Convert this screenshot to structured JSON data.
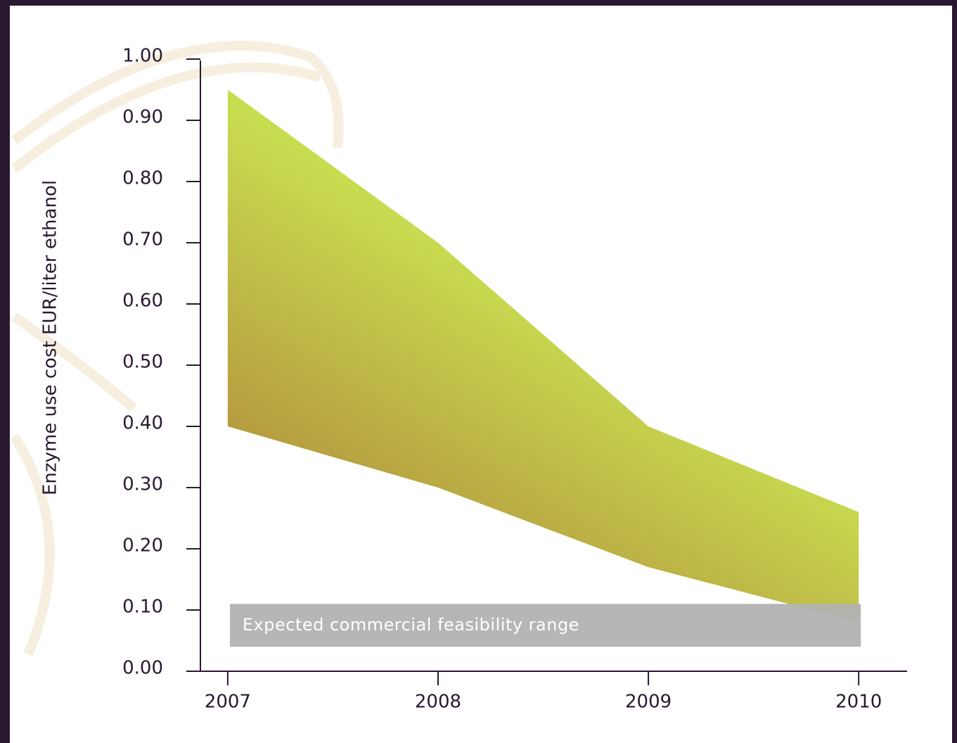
{
  "chart_data": {
    "type": "range-area",
    "y_label": "Enzyme use cost EUR/liter ethanol",
    "x": [
      2007,
      2008,
      2009,
      2010
    ],
    "low": [
      0.4,
      0.3,
      0.17,
      0.08
    ],
    "high": [
      0.95,
      0.7,
      0.4,
      0.26
    ],
    "colors": [
      "#c8dc50",
      "#b0863a"
    ],
    "band": {
      "label": "Expected commercial feasibility range",
      "from": 0.04,
      "to": 0.11,
      "color": "#b2b2b2"
    },
    "xlim": [
      2006.87,
      2010.23
    ],
    "xticks": [
      2007,
      2008,
      2009,
      2010
    ],
    "ylim": [
      0,
      1
    ],
    "yticks": [
      {
        "value": 0,
        "label": "0.00"
      },
      {
        "value": 0.1,
        "label": "0.10"
      },
      {
        "value": 0.2,
        "label": "0.20"
      },
      {
        "value": 0.3,
        "label": "0.30"
      },
      {
        "value": 0.4,
        "label": "0.40"
      },
      {
        "value": 0.5,
        "label": "0.50"
      },
      {
        "value": 0.6,
        "label": "0.60"
      },
      {
        "value": 0.7,
        "label": "0.70"
      },
      {
        "value": 0.8,
        "label": "0.80"
      },
      {
        "value": 0.9,
        "label": "0.90"
      },
      {
        "value": 1,
        "label": "1.00"
      }
    ]
  }
}
